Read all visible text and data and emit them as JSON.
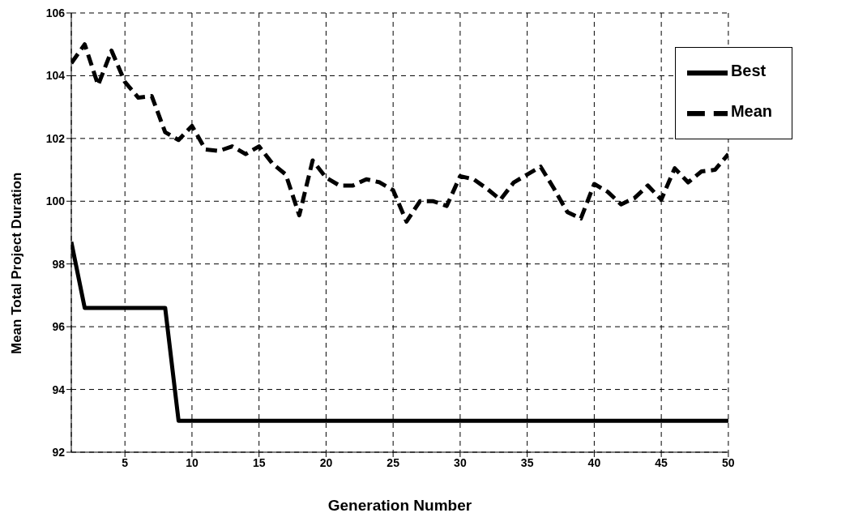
{
  "chart_data": {
    "type": "line",
    "xlabel": "Generation Number",
    "ylabel": "Mean Total Project Duration",
    "x": [
      1,
      2,
      3,
      4,
      5,
      6,
      7,
      8,
      9,
      10,
      11,
      12,
      13,
      14,
      15,
      16,
      17,
      18,
      19,
      20,
      21,
      22,
      23,
      24,
      25,
      26,
      27,
      28,
      29,
      30,
      31,
      32,
      33,
      34,
      35,
      36,
      37,
      38,
      39,
      40,
      41,
      42,
      43,
      44,
      45,
      46,
      47,
      48,
      49,
      50
    ],
    "series": [
      {
        "name": "Best",
        "color": "#000000",
        "line_style": "solid",
        "values": [
          98.7,
          96.6,
          96.6,
          96.6,
          96.6,
          96.6,
          96.6,
          96.6,
          93.0,
          93.0,
          93.0,
          93.0,
          93.0,
          93.0,
          93.0,
          93.0,
          93.0,
          93.0,
          93.0,
          93.0,
          93.0,
          93.0,
          93.0,
          93.0,
          93.0,
          93.0,
          93.0,
          93.0,
          93.0,
          93.0,
          93.0,
          93.0,
          93.0,
          93.0,
          93.0,
          93.0,
          93.0,
          93.0,
          93.0,
          93.0,
          93.0,
          93.0,
          93.0,
          93.0,
          93.0,
          93.0,
          93.0,
          93.0,
          93.0,
          93.0
        ]
      },
      {
        "name": "Mean",
        "color": "#000000",
        "line_style": "dashed",
        "values": [
          104.4,
          105.0,
          103.7,
          104.8,
          103.8,
          103.3,
          103.35,
          102.2,
          101.95,
          102.4,
          101.65,
          101.6,
          101.75,
          101.5,
          101.75,
          101.2,
          100.85,
          99.55,
          101.3,
          100.75,
          100.5,
          100.5,
          100.7,
          100.6,
          100.35,
          99.35,
          100.0,
          100.0,
          99.85,
          100.8,
          100.7,
          100.4,
          100.05,
          100.6,
          100.85,
          101.1,
          100.4,
          99.65,
          99.45,
          100.55,
          100.3,
          99.9,
          100.1,
          100.5,
          100.05,
          101.05,
          100.6,
          100.95,
          101.0,
          101.5
        ]
      }
    ],
    "xlim": [
      1,
      50
    ],
    "xticks": [
      5,
      10,
      15,
      20,
      25,
      30,
      35,
      40,
      45,
      50
    ],
    "ylim": [
      92,
      106
    ],
    "yticks": [
      92,
      94,
      96,
      98,
      100,
      102,
      104,
      106
    ],
    "grid": true,
    "legend": "top right",
    "marker": "none"
  }
}
